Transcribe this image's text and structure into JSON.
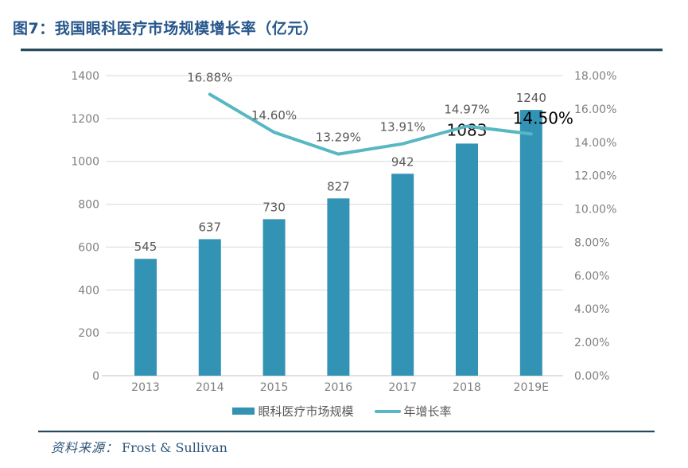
{
  "header": {
    "title": "图7：我国眼科医疗市场规模增长率（亿元）"
  },
  "chart_data": {
    "type": "bar",
    "subtype": "bar+line combo, dual axis",
    "title": "我国眼科医疗市场规模增长率（亿元）",
    "categories": [
      "2013",
      "2014",
      "2015",
      "2016",
      "2017",
      "2018",
      "2019E"
    ],
    "series": [
      {
        "name": "眼科医疗市场规模",
        "type": "bar",
        "axis": "left",
        "values": [
          545,
          637,
          730,
          827,
          942,
          1083,
          1240
        ],
        "labels": [
          "545",
          "637",
          "730",
          "827",
          "942",
          "1083",
          "1240"
        ],
        "emphasized_labels": [
          false,
          false,
          false,
          false,
          false,
          true,
          false
        ]
      },
      {
        "name": "年增长率",
        "type": "line",
        "axis": "right",
        "values": [
          null,
          16.88,
          14.6,
          13.29,
          13.91,
          14.97,
          14.5
        ],
        "labels": [
          null,
          "16.88%",
          "14.60%",
          "13.29%",
          "13.91%",
          "14.97%",
          "14.50%"
        ],
        "emphasized_labels": [
          false,
          false,
          false,
          false,
          false,
          false,
          true
        ]
      }
    ],
    "left_axis": {
      "min": 0,
      "max": 1400,
      "step": 200,
      "ticks": [
        "0",
        "200",
        "400",
        "600",
        "800",
        "1000",
        "1200",
        "1400"
      ]
    },
    "right_axis": {
      "min": 0,
      "max": 18,
      "step": 2,
      "ticks": [
        "0.00%",
        "2.00%",
        "4.00%",
        "6.00%",
        "8.00%",
        "10.00%",
        "12.00%",
        "14.00%",
        "16.00%",
        "18.00%"
      ]
    },
    "grid": true,
    "legend_position": "bottom-center",
    "legend": [
      {
        "label": "眼科医疗市场规模",
        "swatch": "bar"
      },
      {
        "label": "年增长率",
        "swatch": "line"
      }
    ],
    "colors": {
      "bar": "#3293b5",
      "line": "#58b7c2",
      "grid": "#d9d9d9",
      "baseline": "#c3c3c3",
      "axis_text": "#7f7f7f",
      "label_text": "#595959",
      "emphasis_text": "#111111",
      "title": "#26568b",
      "rule": "#2a4a5c",
      "footer_text": "#2d5579"
    }
  },
  "footer": {
    "source_label": "资料来源：",
    "source_value": "Frost & Sullivan"
  }
}
